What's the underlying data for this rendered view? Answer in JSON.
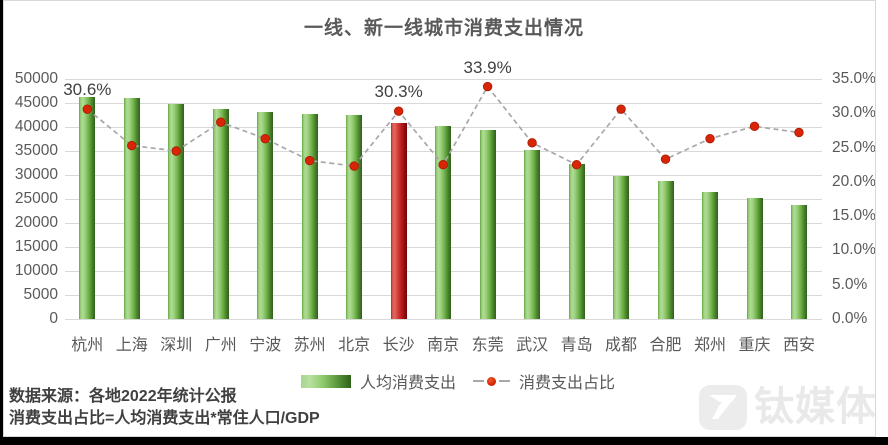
{
  "page": {
    "title": "一线、新一线城市消费支出情况"
  },
  "chart_data": {
    "type": "bar+line combo",
    "title": "一线、新一线城市消费支出情况",
    "categories": [
      "杭州",
      "上海",
      "深圳",
      "广州",
      "宁波",
      "苏州",
      "北京",
      "长沙",
      "南京",
      "东莞",
      "武汉",
      "青岛",
      "成都",
      "合肥",
      "郑州",
      "重庆",
      "西安"
    ],
    "series": [
      {
        "name": "人均消费支出",
        "type": "bar",
        "axis": "left",
        "values": [
          46200,
          46000,
          44800,
          43800,
          43100,
          42800,
          42400,
          40800,
          40200,
          39300,
          35200,
          32200,
          29800,
          28700,
          26400,
          25300,
          23700
        ],
        "highlight_index": 7,
        "highlight_city": "长沙"
      },
      {
        "name": "消费支出占比",
        "type": "line",
        "axis": "right",
        "values": [
          30.6,
          25.3,
          24.5,
          28.7,
          26.3,
          23.1,
          22.3,
          30.3,
          22.5,
          33.9,
          25.7,
          22.5,
          30.6,
          23.3,
          26.3,
          28.1,
          27.2
        ],
        "point_labels": {
          "0": "30.6%",
          "7": "30.3%",
          "9": "33.9%"
        }
      }
    ],
    "left_axis": {
      "min": 0,
      "max": 50000,
      "step": 5000,
      "tick_labels": [
        "0",
        "5000",
        "10000",
        "15000",
        "20000",
        "25000",
        "30000",
        "35000",
        "40000",
        "45000",
        "50000"
      ]
    },
    "right_axis": {
      "min": 0,
      "max": 35,
      "step": 5,
      "tick_labels": [
        "0.0%",
        "5.0%",
        "10.0%",
        "15.0%",
        "20.0%",
        "25.0%",
        "30.0%",
        "35.0%"
      ]
    },
    "grid": true,
    "legend_position": "bottom"
  },
  "legend": {
    "bar_label": "人均消费支出",
    "line_label": "消费支出占比"
  },
  "footer": {
    "line1": "数据来源：各地2022年统计公报",
    "line2": "消费支出占比=人均消费支出*常住人口/GDP"
  },
  "watermark": {
    "text": "钛媒体",
    "icon": "tmtpost-logo-icon"
  },
  "colors": {
    "bar_green": "#70ad47",
    "bar_red": "#c00000",
    "line_gray": "#a8a8a8",
    "marker_red": "#d92507",
    "gridline": "#d9d9d9",
    "axis_text": "#595959",
    "title_text": "#595959",
    "annotation_text": "#404040",
    "watermark_gray": "#ececec"
  }
}
